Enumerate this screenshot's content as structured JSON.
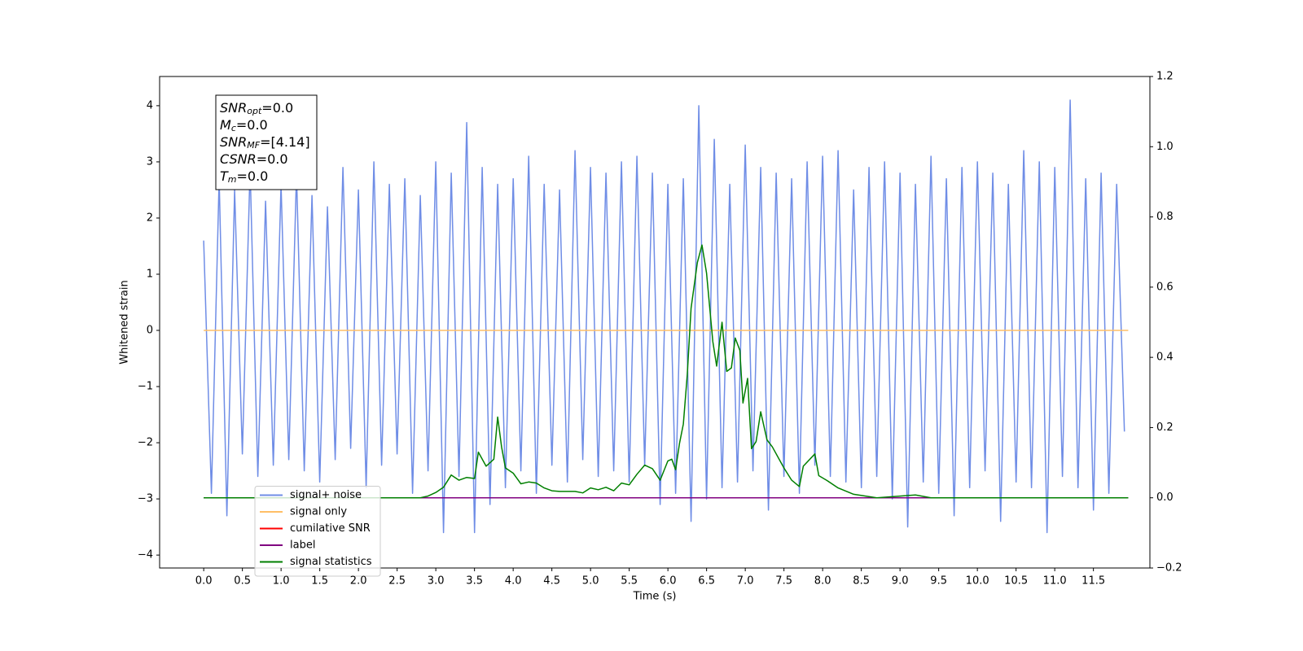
{
  "chart_data": {
    "type": "line",
    "xlabel": "Time (s)",
    "ylabel": "Whitened strain",
    "xlim": [
      -0.57,
      12.23
    ],
    "ylim": [
      -4.23,
      4.52
    ],
    "y2lim": [
      -0.2,
      1.2
    ],
    "xticks": [
      {
        "value": 0,
        "label": "0.0"
      },
      {
        "value": 0.5,
        "label": "0.5"
      },
      {
        "value": 1,
        "label": "1.0"
      },
      {
        "value": 1.5,
        "label": "1.5"
      },
      {
        "value": 2,
        "label": "2.0"
      },
      {
        "value": 2.5,
        "label": "2.5"
      },
      {
        "value": 3,
        "label": "3.0"
      },
      {
        "value": 3.5,
        "label": "3.5"
      },
      {
        "value": 4,
        "label": "4.0"
      },
      {
        "value": 4.5,
        "label": "4.5"
      },
      {
        "value": 5,
        "label": "5.0"
      },
      {
        "value": 5.5,
        "label": "5.5"
      },
      {
        "value": 6,
        "label": "6.0"
      },
      {
        "value": 6.5,
        "label": "6.5"
      },
      {
        "value": 7,
        "label": "7.0"
      },
      {
        "value": 7.5,
        "label": "7.5"
      },
      {
        "value": 8,
        "label": "8.0"
      },
      {
        "value": 8.5,
        "label": "8.5"
      },
      {
        "value": 9,
        "label": "9.0"
      },
      {
        "value": 9.5,
        "label": "9.5"
      },
      {
        "value": 10,
        "label": "10.0"
      },
      {
        "value": 10.5,
        "label": "10.5"
      },
      {
        "value": 11,
        "label": "11.0"
      },
      {
        "value": 11.5,
        "label": "11.5"
      }
    ],
    "yticks": [
      {
        "value": -4,
        "label": "−4"
      },
      {
        "value": -3,
        "label": "−3"
      },
      {
        "value": -2,
        "label": "−2"
      },
      {
        "value": -1,
        "label": "−1"
      },
      0,
      1,
      2,
      3,
      4
    ],
    "y2ticks": [
      {
        "value": -0.2,
        "label": "−0.2"
      },
      {
        "value": 0,
        "label": "0.0"
      },
      {
        "value": 0.2,
        "label": "0.2"
      },
      {
        "value": 0.4,
        "label": "0.4"
      },
      {
        "value": 0.6,
        "label": "0.6"
      },
      {
        "value": 0.8,
        "label": "0.8"
      },
      {
        "value": 1,
        "label": "1.0"
      },
      {
        "value": 1.2,
        "label": "1.2"
      }
    ],
    "legend": "lower left",
    "annotation_lines": [
      {
        "name": "SNR",
        "sub": "opt",
        "value": "=0.0"
      },
      {
        "name": "M",
        "sub": "c",
        "value": "=0.0"
      },
      {
        "name": "SNR",
        "sub": "MF",
        "value": "=[4.14]"
      },
      {
        "name": "CSNR",
        "sub": "",
        "value": "=0.0"
      },
      {
        "name": "T",
        "sub": "m",
        "value": "=0.0"
      }
    ],
    "series": [
      {
        "name": "signal+ noise",
        "color": "#6f8de6",
        "axis": "y",
        "x": [
          0,
          0.1,
          0.2,
          0.3,
          0.4,
          0.5,
          0.6,
          0.7,
          0.8,
          0.9,
          1,
          1.1,
          1.2,
          1.3,
          1.4,
          1.5,
          1.6,
          1.7,
          1.8,
          1.9,
          2,
          2.1,
          2.2,
          2.3,
          2.4,
          2.5,
          2.6,
          2.7,
          2.8,
          2.9,
          3,
          3.1,
          3.2,
          3.3,
          3.4,
          3.5,
          3.6,
          3.7,
          3.8,
          3.9,
          4,
          4.1,
          4.2,
          4.3,
          4.4,
          4.5,
          4.6,
          4.7,
          4.8,
          4.9,
          5,
          5.1,
          5.2,
          5.3,
          5.4,
          5.5,
          5.6,
          5.7,
          5.8,
          5.9,
          6,
          6.1,
          6.2,
          6.3,
          6.4,
          6.5,
          6.6,
          6.7,
          6.8,
          6.9,
          7,
          7.1,
          7.2,
          7.3,
          7.4,
          7.5,
          7.6,
          7.7,
          7.8,
          7.9,
          8,
          8.1,
          8.2,
          8.3,
          8.4,
          8.5,
          8.6,
          8.7,
          8.8,
          8.9,
          9,
          9.1,
          9.2,
          9.3,
          9.4,
          9.5,
          9.6,
          9.7,
          9.8,
          9.9,
          10,
          10.1,
          10.2,
          10.3,
          10.4,
          10.5,
          10.6,
          10.7,
          10.8,
          10.9,
          11,
          11.1,
          11.2,
          11.3,
          11.4,
          11.5,
          11.6,
          11.7,
          11.8,
          11.9
        ],
        "values": [
          1.6,
          -2.9,
          2.7,
          -3.3,
          2.5,
          -2.2,
          2.9,
          -2.6,
          2.3,
          -2.4,
          2.6,
          -2.3,
          2.8,
          -2.5,
          2.4,
          -2.7,
          2.2,
          -2.3,
          2.9,
          -2.1,
          2.5,
          -2.8,
          3.0,
          -2.4,
          2.6,
          -2.2,
          2.7,
          -2.9,
          2.4,
          -2.5,
          3.0,
          -3.6,
          2.8,
          -2.6,
          3.7,
          -3.6,
          2.9,
          -3.1,
          2.6,
          -2.8,
          2.7,
          -2.5,
          3.1,
          -2.9,
          2.6,
          -2.4,
          2.5,
          -2.7,
          3.2,
          -2.3,
          2.9,
          -2.6,
          2.8,
          -2.5,
          3.0,
          -2.7,
          3.1,
          -2.4,
          2.8,
          -3.1,
          2.6,
          -2.9,
          2.7,
          -3.4,
          4.0,
          -3.0,
          3.4,
          -2.8,
          2.6,
          -2.7,
          3.3,
          -2.5,
          2.9,
          -3.2,
          2.8,
          -2.6,
          2.7,
          -2.9,
          3.0,
          -2.4,
          3.1,
          -2.6,
          3.2,
          -2.7,
          2.5,
          -2.8,
          2.9,
          -2.6,
          3.0,
          -3.0,
          2.8,
          -3.5,
          2.6,
          -2.7,
          3.1,
          -2.9,
          2.7,
          -3.3,
          2.9,
          -2.8,
          3.0,
          -2.5,
          2.8,
          -3.4,
          2.6,
          -2.7,
          3.2,
          -2.8,
          3.0,
          -3.6,
          2.9,
          -2.6,
          4.1,
          -2.8,
          2.7,
          -3.2,
          2.8,
          -2.9,
          2.6,
          -1.8
        ]
      },
      {
        "name": "signal only",
        "color": "#ffbf66",
        "axis": "y",
        "x": [
          0,
          11.95
        ],
        "values": [
          0,
          0
        ]
      },
      {
        "name": "cumilative SNR",
        "color": "#ff0000",
        "axis": "y2",
        "x": [
          0,
          11.95
        ],
        "values": [
          0,
          0
        ]
      },
      {
        "name": "label",
        "color": "#800080",
        "axis": "y2",
        "x": [
          0,
          11.95
        ],
        "values": [
          0,
          0
        ]
      },
      {
        "name": "signal statistics",
        "color": "#007f00",
        "axis": "y2",
        "x": [
          0,
          2.8,
          2.9,
          3.0,
          3.1,
          3.2,
          3.3,
          3.4,
          3.5,
          3.55,
          3.65,
          3.75,
          3.8,
          3.85,
          3.9,
          4.0,
          4.1,
          4.2,
          4.3,
          4.4,
          4.5,
          4.6,
          4.8,
          4.9,
          5.0,
          5.1,
          5.2,
          5.3,
          5.4,
          5.5,
          5.6,
          5.7,
          5.8,
          5.9,
          6.0,
          6.05,
          6.1,
          6.15,
          6.2,
          6.25,
          6.3,
          6.38,
          6.44,
          6.5,
          6.58,
          6.63,
          6.7,
          6.76,
          6.82,
          6.87,
          6.93,
          6.97,
          7.03,
          7.08,
          7.14,
          7.2,
          7.28,
          7.35,
          7.5,
          7.6,
          7.7,
          7.75,
          7.9,
          7.95,
          8.05,
          8.2,
          8.4,
          8.7,
          9.2,
          9.4,
          11.95
        ],
        "values": [
          0,
          0,
          0.005,
          0.015,
          0.03,
          0.065,
          0.05,
          0.058,
          0.055,
          0.13,
          0.09,
          0.11,
          0.23,
          0.145,
          0.085,
          0.07,
          0.04,
          0.045,
          0.042,
          0.028,
          0.02,
          0.018,
          0.018,
          0.014,
          0.028,
          0.023,
          0.03,
          0.02,
          0.042,
          0.037,
          0.067,
          0.093,
          0.083,
          0.05,
          0.105,
          0.11,
          0.08,
          0.155,
          0.21,
          0.35,
          0.54,
          0.67,
          0.72,
          0.64,
          0.445,
          0.375,
          0.5,
          0.36,
          0.37,
          0.455,
          0.42,
          0.27,
          0.34,
          0.14,
          0.16,
          0.245,
          0.165,
          0.145,
          0.085,
          0.05,
          0.032,
          0.09,
          0.125,
          0.063,
          0.05,
          0.028,
          0.01,
          0,
          0.008,
          0,
          0
        ]
      }
    ]
  }
}
